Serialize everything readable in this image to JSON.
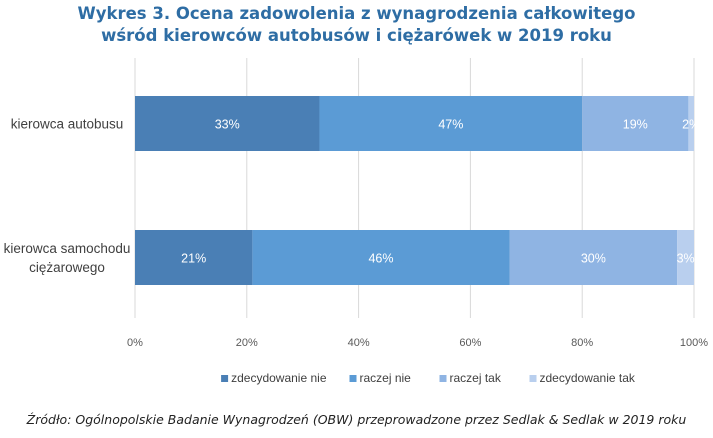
{
  "chart_data": {
    "type": "bar",
    "orientation": "horizontal",
    "stacked": true,
    "title": "Wykres 3. Ocena zadowolenia z wynagrodzenia całkowitego wśród kierowców autobusów i ciężarówek w 2019 roku",
    "title_lines": [
      "Wykres 3. Ocena zadowolenia z wynagrodzenia całkowitego",
      "wśród kierowców autobusów i ciężarówek w 2019 roku"
    ],
    "categories": [
      {
        "lines": [
          "kierowca autobusu"
        ]
      },
      {
        "lines": [
          "kierowca samochodu",
          "ciężarowego"
        ]
      }
    ],
    "series": [
      {
        "name": "zdecydowanie nie",
        "color": "#4a7fb5",
        "values": [
          33,
          21
        ],
        "labels": [
          "33%",
          "21%"
        ]
      },
      {
        "name": "raczej nie",
        "color": "#5b9bd5",
        "values": [
          47,
          46
        ],
        "labels": [
          "47%",
          "46%"
        ]
      },
      {
        "name": "raczej tak",
        "color": "#8fb4e3",
        "values": [
          19,
          30
        ],
        "labels": [
          "19%",
          "30%"
        ]
      },
      {
        "name": "zdecydowanie tak",
        "color": "#b9cfee",
        "values": [
          2,
          3
        ],
        "labels": [
          "2%",
          "3%"
        ]
      }
    ],
    "xlim": [
      0,
      100
    ],
    "xticks": [
      0,
      20,
      40,
      60,
      80,
      100
    ],
    "xtick_labels": [
      "0%",
      "20%",
      "40%",
      "60%",
      "80%",
      "100%"
    ],
    "grid": "vertical",
    "legend_position": "bottom"
  },
  "source_text": "Źródło: Ogólnopolskie Badanie Wynagrodzeń (OBW) przeprowadzone przez Sedlak & Sedlak w 2019 roku"
}
